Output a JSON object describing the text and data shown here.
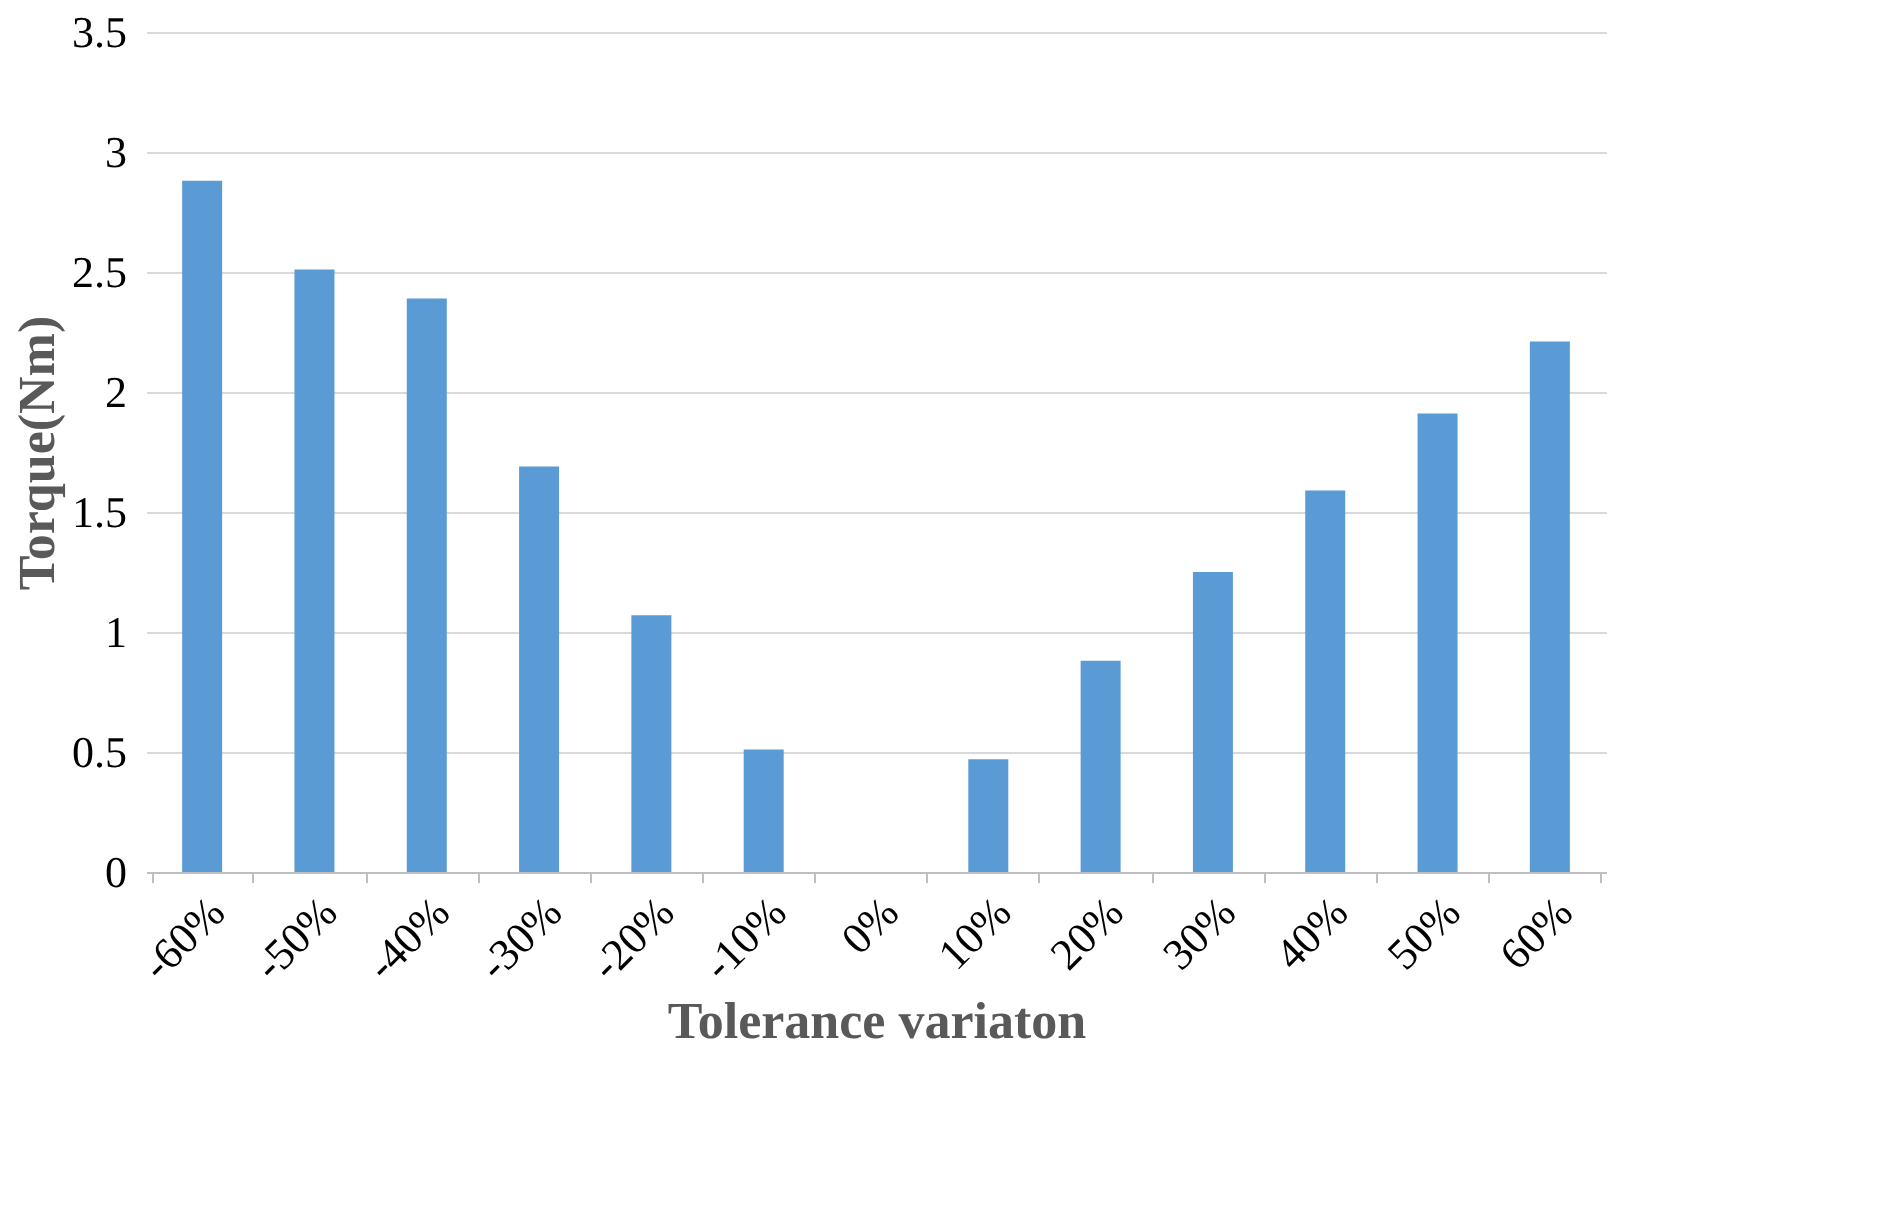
{
  "chart_data": {
    "type": "bar",
    "xlabel": "Tolerance variaton",
    "ylabel": "Torque(Nm)",
    "categories": [
      "-60%",
      "-50%",
      "-40%",
      "-30%",
      "-20%",
      "-10%",
      "0%",
      "10%",
      "20%",
      "30%",
      "40%",
      "50%",
      "60%"
    ],
    "values": [
      2.88,
      2.51,
      2.39,
      1.69,
      1.07,
      0.51,
      0,
      0.47,
      0.88,
      1.25,
      1.59,
      1.91,
      2.21
    ],
    "color": "#5b9bd5",
    "ylim": [
      0,
      3.5
    ],
    "yticks": [
      0,
      0.5,
      1,
      1.5,
      2,
      2.5,
      3,
      3.5
    ],
    "grid": "y"
  }
}
